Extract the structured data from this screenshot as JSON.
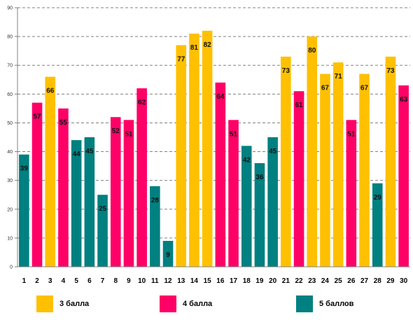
{
  "chart_data": {
    "type": "bar",
    "title": "",
    "xlabel": "",
    "ylabel": "",
    "ylim": [
      0,
      90
    ],
    "ytick_step": 10,
    "grid": true,
    "legend_position": "bottom",
    "categories": [
      "1",
      "2",
      "3",
      "4",
      "5",
      "6",
      "7",
      "8",
      "9",
      "10",
      "11",
      "12",
      "13",
      "14",
      "15",
      "16",
      "17",
      "18",
      "19",
      "20",
      "21",
      "22",
      "23",
      "24",
      "25",
      "26",
      "27",
      "28",
      "29",
      "30"
    ],
    "values": [
      39,
      57,
      66,
      55,
      44,
      45,
      25,
      52,
      51,
      62,
      28,
      9,
      77,
      81,
      82,
      64,
      51,
      42,
      36,
      45,
      73,
      61,
      80,
      67,
      71,
      51,
      67,
      29,
      73,
      63
    ],
    "value_groups": [
      "g5",
      "g4",
      "g3",
      "g4",
      "g5",
      "g5",
      "g5",
      "g4",
      "g4",
      "g4",
      "g5",
      "g5",
      "g3",
      "g3",
      "g3",
      "g4",
      "g4",
      "g5",
      "g5",
      "g5",
      "g3",
      "g4",
      "g3",
      "g3",
      "g3",
      "g4",
      "g3",
      "g5",
      "g3",
      "g4"
    ],
    "groups": [
      {
        "id": "g3",
        "name": "3 балла",
        "color": "#FFC000"
      },
      {
        "id": "g4",
        "name": "4 балла",
        "color": "#FF0066"
      },
      {
        "id": "g5",
        "name": "5 баллов",
        "color": "#008080"
      }
    ]
  }
}
